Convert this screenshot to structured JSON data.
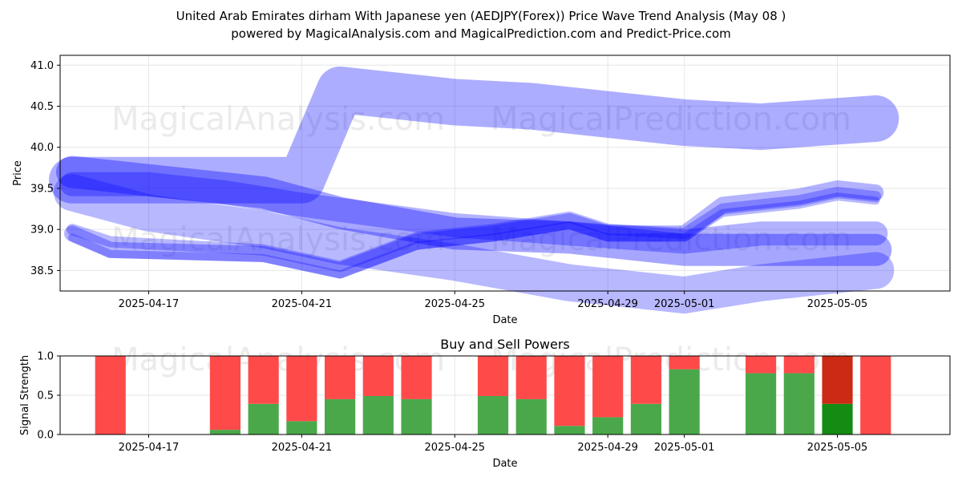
{
  "figure": {
    "title_line1": "United Arab Emirates dirham With Japanese yen (AEDJPY(Forex)) Price Wave Trend Analysis (May 08 )",
    "title_line2": "powered by MagicalAnalysis.com and MagicalPrediction.com and Predict-Price.com",
    "watermarks": [
      "MagicalAnalysis.com",
      "MagicalPrediction.com"
    ]
  },
  "chart_data": [
    {
      "type": "line",
      "xlabel": "Date",
      "ylabel": "Price",
      "xlim": [
        "2025-04-15",
        "2025-05-07"
      ],
      "ylim": [
        38.25,
        41.12
      ],
      "x_ticks": [
        "2025-04-17",
        "2025-04-21",
        "2025-04-25",
        "2025-04-29",
        "2025-05-01",
        "2025-05-05"
      ],
      "y_ticks": [
        38.5,
        39.0,
        39.5,
        40.0,
        40.5,
        41.0
      ],
      "grid": true,
      "line_color": "#0000ff",
      "series": [
        {
          "x": [
            "2025-04-15",
            "2025-04-20",
            "2025-04-21",
            "2025-04-22",
            "2025-04-25",
            "2025-04-27",
            "2025-05-01",
            "2025-05-03",
            "2025-05-06"
          ],
          "values": [
            39.6,
            39.6,
            39.6,
            40.7,
            40.55,
            40.5,
            40.3,
            40.25,
            40.35
          ]
        },
        {
          "x": [
            "2025-04-15",
            "2025-04-17",
            "2025-04-20",
            "2025-04-22",
            "2025-04-25",
            "2025-04-28",
            "2025-05-01",
            "2025-05-03",
            "2025-05-06"
          ],
          "values": [
            39.7,
            39.6,
            39.45,
            39.2,
            38.95,
            38.9,
            38.75,
            38.75,
            38.75
          ]
        },
        {
          "x": [
            "2025-04-15",
            "2025-04-17",
            "2025-04-19",
            "2025-04-21",
            "2025-04-25",
            "2025-04-28",
            "2025-05-01",
            "2025-05-03",
            "2025-05-06"
          ],
          "values": [
            39.55,
            39.55,
            39.45,
            39.3,
            39.05,
            38.95,
            38.85,
            38.95,
            38.95
          ]
        },
        {
          "x": [
            "2025-04-15",
            "2025-04-17",
            "2025-04-20",
            "2025-04-22",
            "2025-04-25",
            "2025-04-28",
            "2025-05-01",
            "2025-05-03",
            "2025-05-06"
          ],
          "values": [
            39.45,
            39.2,
            39.0,
            38.8,
            38.6,
            38.35,
            38.2,
            38.35,
            38.5
          ]
        },
        {
          "x": [
            "2025-04-15",
            "2025-04-16",
            "2025-04-20",
            "2025-04-22",
            "2025-04-24",
            "2025-04-26",
            "2025-04-28",
            "2025-04-29",
            "2025-05-01",
            "2025-05-02",
            "2025-05-04",
            "2025-05-05",
            "2025-05-06"
          ],
          "values": [
            38.95,
            38.75,
            38.7,
            38.5,
            38.85,
            38.95,
            39.1,
            38.95,
            38.95,
            39.3,
            39.4,
            39.5,
            39.45
          ]
        },
        {
          "x": [
            "2025-04-15",
            "2025-04-16",
            "2025-04-20",
            "2025-04-22",
            "2025-04-24",
            "2025-04-26",
            "2025-04-28",
            "2025-04-29",
            "2025-05-01",
            "2025-05-02",
            "2025-05-04",
            "2025-05-05",
            "2025-05-06"
          ],
          "values": [
            39.0,
            38.85,
            38.75,
            38.55,
            38.9,
            39.0,
            39.15,
            39.0,
            38.95,
            39.25,
            39.35,
            39.45,
            39.4
          ]
        },
        {
          "x": [
            "2025-04-15",
            "2025-04-16",
            "2025-04-20",
            "2025-04-22",
            "2025-04-24",
            "2025-04-26",
            "2025-04-28",
            "2025-04-29",
            "2025-05-01",
            "2025-05-02",
            "2025-05-04",
            "2025-05-05",
            "2025-05-06"
          ],
          "values": [
            38.9,
            38.7,
            38.65,
            38.45,
            38.8,
            38.9,
            39.05,
            38.9,
            38.9,
            39.2,
            39.3,
            39.4,
            39.35
          ]
        }
      ]
    },
    {
      "type": "bar",
      "title": "Buy and Sell Powers",
      "xlabel": "Date",
      "ylabel": "Signal Strength",
      "ylim": [
        0,
        1
      ],
      "y_ticks": [
        0.0,
        0.5,
        1.0
      ],
      "x_ticks": [
        "2025-04-17",
        "2025-04-21",
        "2025-04-25",
        "2025-04-29",
        "2025-05-01",
        "2025-05-05"
      ],
      "xlim": [
        "2025-04-15",
        "2025-05-07"
      ],
      "buy_color": "#4aa84a",
      "sell_color": "#ff4a4a",
      "dark_buy_color": "#148c14",
      "dark_sell_color": "#cc2a14",
      "categories": [
        "2025-04-16",
        "2025-04-19",
        "2025-04-20",
        "2025-04-21",
        "2025-04-22",
        "2025-04-23",
        "2025-04-24",
        "2025-04-26",
        "2025-04-27",
        "2025-04-28",
        "2025-04-29",
        "2025-04-30",
        "2025-05-01",
        "2025-05-03",
        "2025-05-04",
        "2025-05-05",
        "2025-05-06"
      ],
      "series": [
        {
          "name": "Buy",
          "values": [
            0.0,
            0.06,
            0.39,
            0.17,
            0.45,
            0.49,
            0.45,
            0.49,
            0.45,
            0.11,
            0.22,
            0.39,
            0.83,
            0.78,
            0.78,
            0.39,
            0.0
          ]
        },
        {
          "name": "Sell",
          "values": [
            1.0,
            0.94,
            0.61,
            0.83,
            0.55,
            0.51,
            0.55,
            0.51,
            0.55,
            0.89,
            0.78,
            0.61,
            0.17,
            0.22,
            0.22,
            0.61,
            1.0
          ]
        }
      ],
      "highlight_index": 15
    }
  ]
}
